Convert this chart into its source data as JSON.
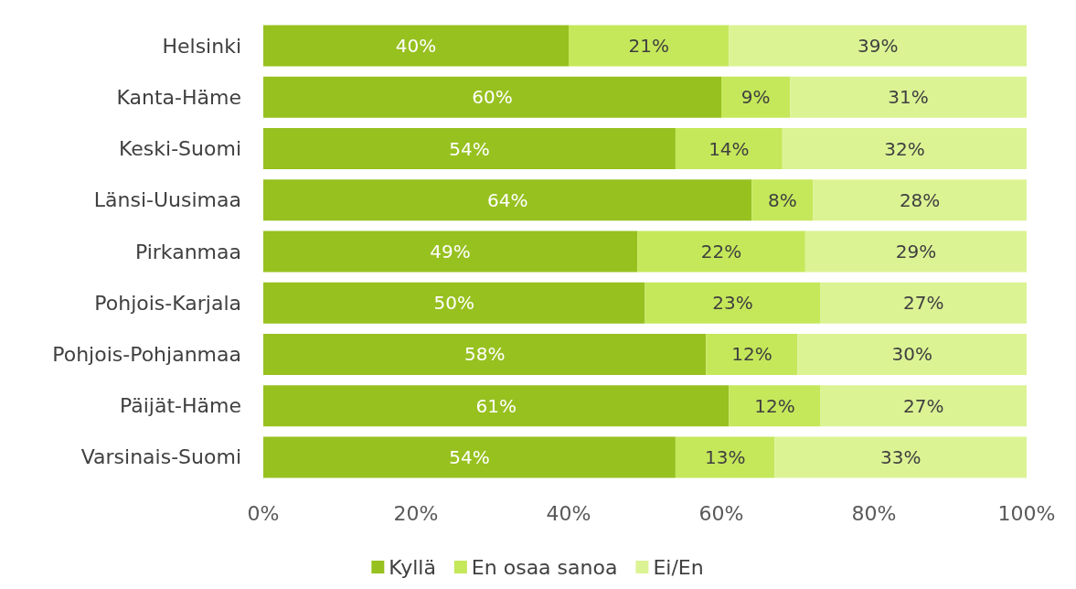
{
  "chart_data": {
    "type": "bar",
    "orientation": "horizontal",
    "stacked": true,
    "categories": [
      "Helsinki",
      "Kanta-Häme",
      "Keski-Suomi",
      "Länsi-Uusimaa",
      "Pirkanmaa",
      "Pohjois-Karjala",
      "Pohjois-Pohjanmaa",
      "Päijät-Häme",
      "Varsinais-Suomi"
    ],
    "series": [
      {
        "name": "Kyllä",
        "color": "#97c11f",
        "values": [
          40,
          60,
          54,
          64,
          49,
          50,
          58,
          61,
          54
        ],
        "value_labels": [
          "40%",
          "60%",
          "54%",
          "64%",
          "49%",
          "50%",
          "58%",
          "61%",
          "54%"
        ]
      },
      {
        "name": "En osaa sanoa",
        "color": "#c5e85a",
        "values": [
          21,
          9,
          14,
          8,
          22,
          23,
          12,
          12,
          13
        ],
        "value_labels": [
          "21%",
          "9%",
          "14%",
          "8%",
          "22%",
          "23%",
          "12%",
          "12%",
          "13%"
        ]
      },
      {
        "name": "Ei/En",
        "color": "#dcf394",
        "values": [
          39,
          31,
          32,
          28,
          29,
          27,
          30,
          27,
          33
        ],
        "value_labels": [
          "39%",
          "31%",
          "32%",
          "28%",
          "29%",
          "27%",
          "30%",
          "27%",
          "33%"
        ]
      }
    ],
    "xlim": [
      0,
      100
    ],
    "xticks": [
      {
        "value": 0,
        "label": "0%"
      },
      {
        "value": 20,
        "label": "20%"
      },
      {
        "value": 40,
        "label": "40%"
      },
      {
        "value": 60,
        "label": "60%"
      },
      {
        "value": 80,
        "label": "80%"
      },
      {
        "value": 100,
        "label": "100%"
      }
    ],
    "grid": false,
    "legend": "bottom"
  }
}
